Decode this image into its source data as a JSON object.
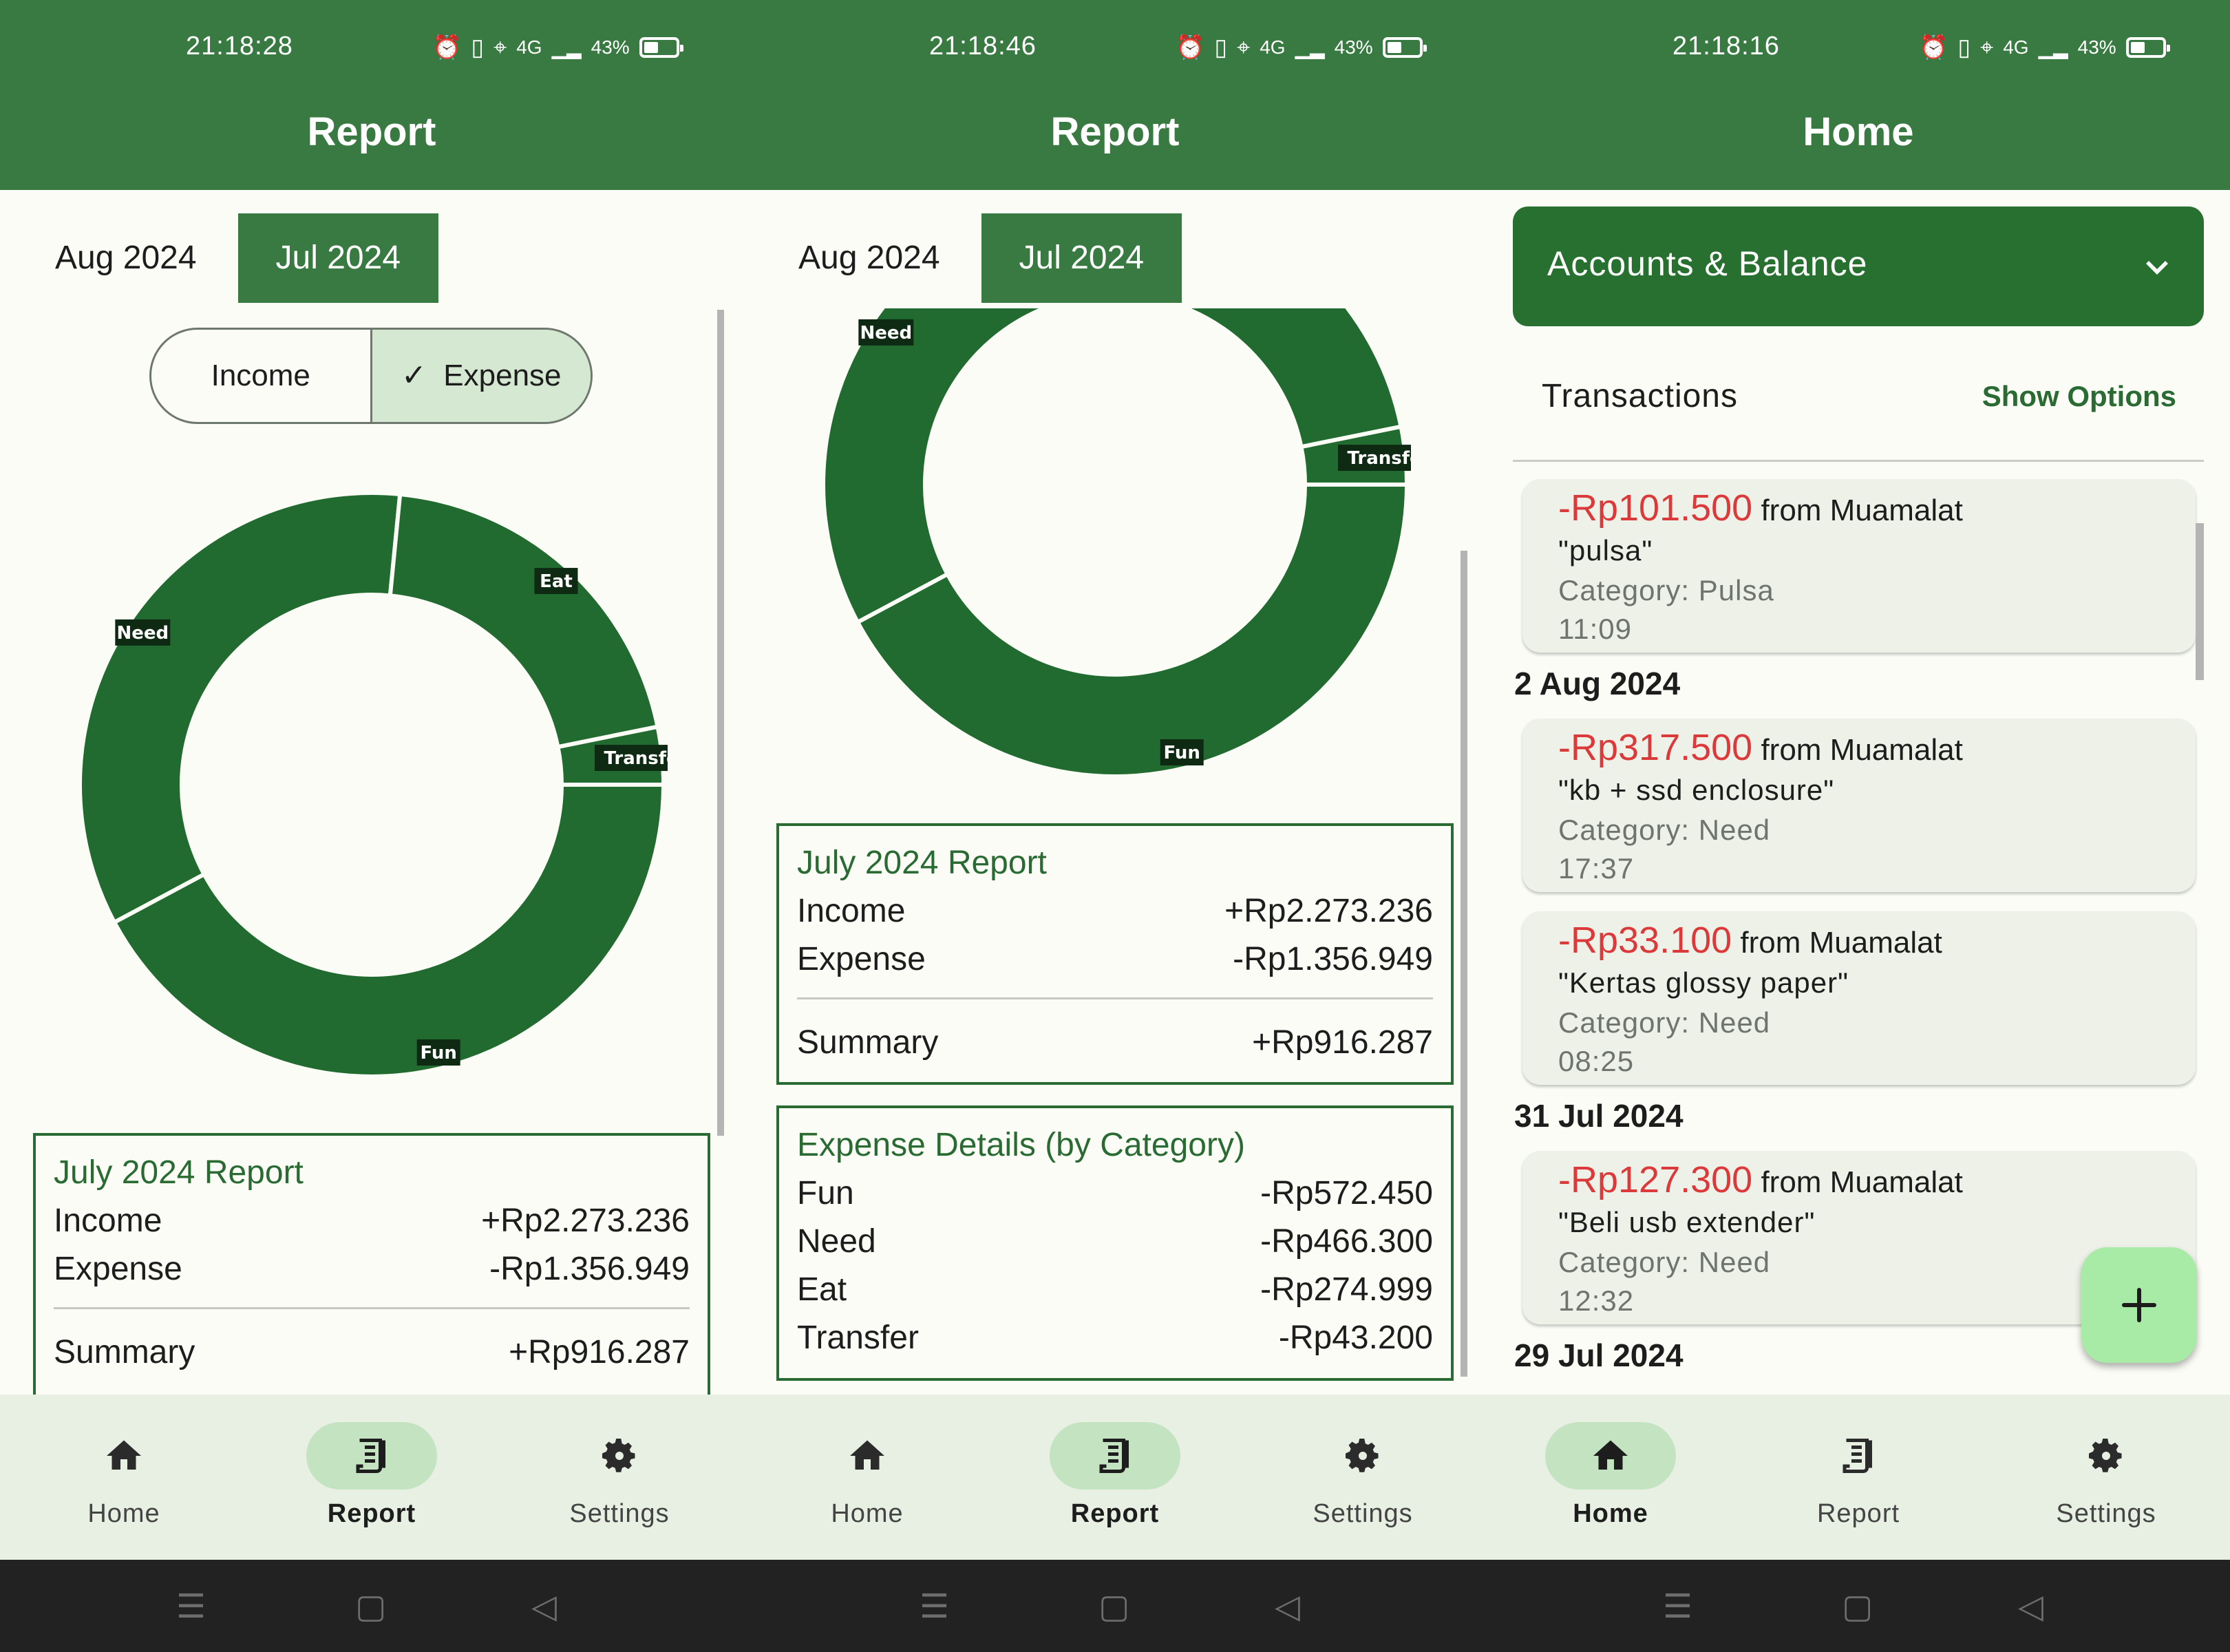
{
  "status": {
    "screen1_time": "21:18:28",
    "screen2_time": "21:18:46",
    "screen3_time": "21:18:16",
    "network": "4G",
    "battery": "43%"
  },
  "report": {
    "title": "Report",
    "month_tabs": [
      "Aug 2024",
      "Jul 2024"
    ],
    "active_month": "Jul 2024",
    "toggle": {
      "income": "Income",
      "expense": "Expense",
      "selected": "Expense"
    },
    "summary_card": {
      "title": "July 2024 Report",
      "income_label": "Income",
      "income_value": "+Rp2.273.236",
      "expense_label": "Expense",
      "expense_value": "-Rp1.356.949",
      "summary_label": "Summary",
      "summary_value": "+Rp916.287"
    },
    "details_card": {
      "title": "Expense Details (by Category)",
      "rows": [
        {
          "label": "Fun",
          "value": "-Rp572.450"
        },
        {
          "label": "Need",
          "value": "-Rp466.300"
        },
        {
          "label": "Eat",
          "value": "-Rp274.999"
        },
        {
          "label": "Transfer",
          "value": "-Rp43.200"
        }
      ]
    }
  },
  "chart_data": {
    "type": "pie",
    "style": "donut",
    "categories": [
      "Fun",
      "Need",
      "Eat",
      "Transfer"
    ],
    "values": [
      572450,
      466300,
      274999,
      43200
    ],
    "colors": [
      "#216b31",
      "#216b31",
      "#216b31",
      "#216b31"
    ]
  },
  "home": {
    "title": "Home",
    "accounts_label": "Accounts & Balance",
    "transactions_label": "Transactions",
    "show_options": "Show Options",
    "transactions": [
      {
        "amount": "-Rp101.500",
        "from": "from Muamalat",
        "desc": "\"pulsa\"",
        "category": "Category: Pulsa",
        "time": "11:09"
      },
      {
        "date_header": "2 Aug 2024"
      },
      {
        "amount": "-Rp317.500",
        "from": "from Muamalat",
        "desc": "\"kb + ssd enclosure\"",
        "category": "Category: Need",
        "time": "17:37"
      },
      {
        "amount": "-Rp33.100",
        "from": "from Muamalat",
        "desc": "\"Kertas glossy paper\"",
        "category": "Category: Need",
        "time": "08:25"
      },
      {
        "date_header": "31 Jul 2024"
      },
      {
        "amount": "-Rp127.300",
        "from": "from Muamalat",
        "desc": "\"Beli usb extender\"",
        "category": "Category: Need",
        "time": "12:32"
      },
      {
        "date_header": "29 Jul 2024"
      }
    ]
  },
  "nav": {
    "home": "Home",
    "report": "Report",
    "settings": "Settings"
  },
  "colors": {
    "primary": "#397a42",
    "chart": "#216b31",
    "negative": "#dc3a3a",
    "nav_bg": "#e7f0e2",
    "pill": "#c4e3c0",
    "fab": "#a7eba6"
  }
}
